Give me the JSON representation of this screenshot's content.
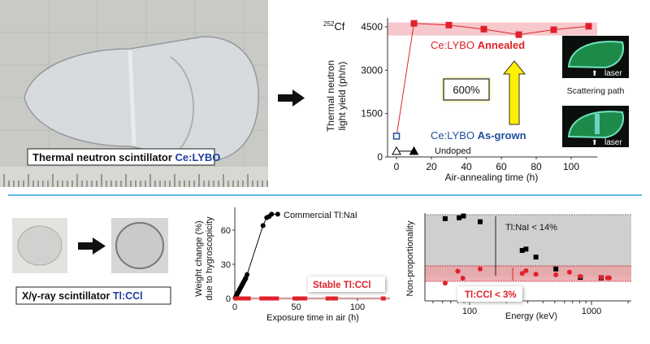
{
  "top": {
    "photo_label_prefix": "Thermal neutron scintillator",
    "photo_label_material": "Ce:LYBO",
    "source_label_sup": "252",
    "source_label": "Cf",
    "annealed_prefix": "Ce:LYBO",
    "annealed_label": "Annealed",
    "asgrown_prefix": "Ce:LYBO",
    "asgrown_label": "As-grown",
    "undoped_label": "Undoped",
    "increase_label": "600%",
    "scattering_label": "Scattering path",
    "laser_label_1": "laser",
    "laser_label_2": "laser"
  },
  "bottom": {
    "photo_label_prefix": "X/γ-ray scintillator",
    "photo_label_material": "Tl:CCl",
    "nai_label": "Commercial Tl:NaI",
    "ccl_label": "Stable Tl:CCl",
    "nai_np_label": "Tl:NaI < 14%",
    "ccl_np_label": "Tl:CCl < 3%"
  },
  "colors": {
    "red": "#e0212b",
    "blue": "#1f4e9c",
    "divider": "#2aa0d8",
    "material_blue": "#1f3f9c"
  },
  "chart_data": [
    {
      "type": "line",
      "title": "",
      "xlabel": "Air-annealing time (h)",
      "ylabel": "Thermal neutron light yield (ph/n)",
      "xlim": [
        -5,
        115
      ],
      "ylim": [
        0,
        4800
      ],
      "xticks": [
        "0",
        "20",
        "40",
        "60",
        "80",
        "100"
      ],
      "xtick_values": [
        0,
        20,
        40,
        60,
        80,
        100
      ],
      "yticks": [
        "0",
        "1500",
        "3000",
        "4500"
      ],
      "ytick_values": [
        0,
        1500,
        3000,
        4500
      ],
      "band": [
        4200,
        4650
      ],
      "series": [
        {
          "name": "Ce:LYBO Annealed",
          "marker": "square-filled",
          "color": "#e0212b",
          "x": [
            0,
            10,
            30,
            50,
            70,
            90,
            110
          ],
          "y": [
            720,
            4620,
            4560,
            4420,
            4230,
            4400,
            4520
          ]
        },
        {
          "name": "Ce:LYBO As-grown",
          "marker": "square-open",
          "color": "#1f4e9c",
          "x": [
            0
          ],
          "y": [
            720
          ]
        },
        {
          "name": "Undoped",
          "marker": "triangle",
          "color": "#000000",
          "x": [
            0,
            10
          ],
          "y": [
            200,
            200
          ]
        }
      ]
    },
    {
      "type": "scatter",
      "xlabel": "Exposure time in air (h)",
      "ylabel": "Weight change (%) due to hygroscopicity",
      "xlim": [
        0,
        125
      ],
      "ylim": [
        0,
        78
      ],
      "xticks": [
        "0",
        "50",
        "100"
      ],
      "xtick_values": [
        0,
        50,
        100
      ],
      "yticks": [
        "0",
        "30",
        "60"
      ],
      "ytick_values": [
        0,
        30,
        60
      ],
      "series": [
        {
          "name": "Commercial Tl:NaI",
          "color": "#000000",
          "x": [
            0.5,
            1,
            1.5,
            2,
            2.5,
            3,
            3.5,
            4,
            4.5,
            5,
            5.5,
            6,
            6.5,
            7,
            7.5,
            8,
            8.5,
            9,
            10,
            23,
            26,
            28,
            30,
            35
          ],
          "y": [
            1,
            2,
            3,
            4,
            5,
            6,
            7,
            8,
            9,
            10,
            11,
            12,
            13,
            14,
            15,
            16,
            17,
            18,
            21,
            64,
            71,
            72,
            74,
            74
          ]
        },
        {
          "name": "Stable Tl:CCl",
          "color": "#e0212b",
          "x": [
            1,
            3,
            5,
            7,
            9,
            11,
            22,
            24,
            26,
            28,
            30,
            32,
            34,
            49,
            51,
            53,
            55,
            57,
            76,
            80,
            82,
            121
          ],
          "y": [
            0,
            0,
            0,
            0,
            0,
            0,
            0,
            0,
            0,
            0,
            0,
            0,
            0,
            0,
            0,
            0,
            0,
            0,
            0,
            0,
            0,
            0
          ]
        }
      ]
    },
    {
      "type": "scatter",
      "xlabel": "Energy (keV)",
      "ylabel": "Non-proportionality",
      "xscale": "log",
      "xlim": [
        30,
        2000
      ],
      "ylim": [
        -6,
        14
      ],
      "xticks": [
        "100",
        "1000"
      ],
      "xtick_values": [
        100,
        1000
      ],
      "series": [
        {
          "name": "Tl:NaI",
          "marker": "square",
          "color": "#000000",
          "x": [
            63,
            82,
            89,
            122,
            270,
            290,
            350,
            510,
            810,
            1200
          ],
          "y": [
            13.1,
            13.3,
            13.7,
            12.4,
            5.9,
            6.2,
            4.4,
            1.7,
            -0.2,
            -0.3
          ]
        },
        {
          "name": "Tl:CCl",
          "marker": "circle",
          "color": "#e0212b",
          "x": [
            63,
            80,
            88,
            122,
            270,
            290,
            350,
            510,
            660,
            810,
            1200,
            1350,
            1400
          ],
          "y": [
            -1.5,
            1.2,
            -0.4,
            1.7,
            0.7,
            1.3,
            0.5,
            0.4,
            1.0,
            0.0,
            -0.2,
            -0.3,
            -0.3
          ]
        }
      ]
    }
  ]
}
